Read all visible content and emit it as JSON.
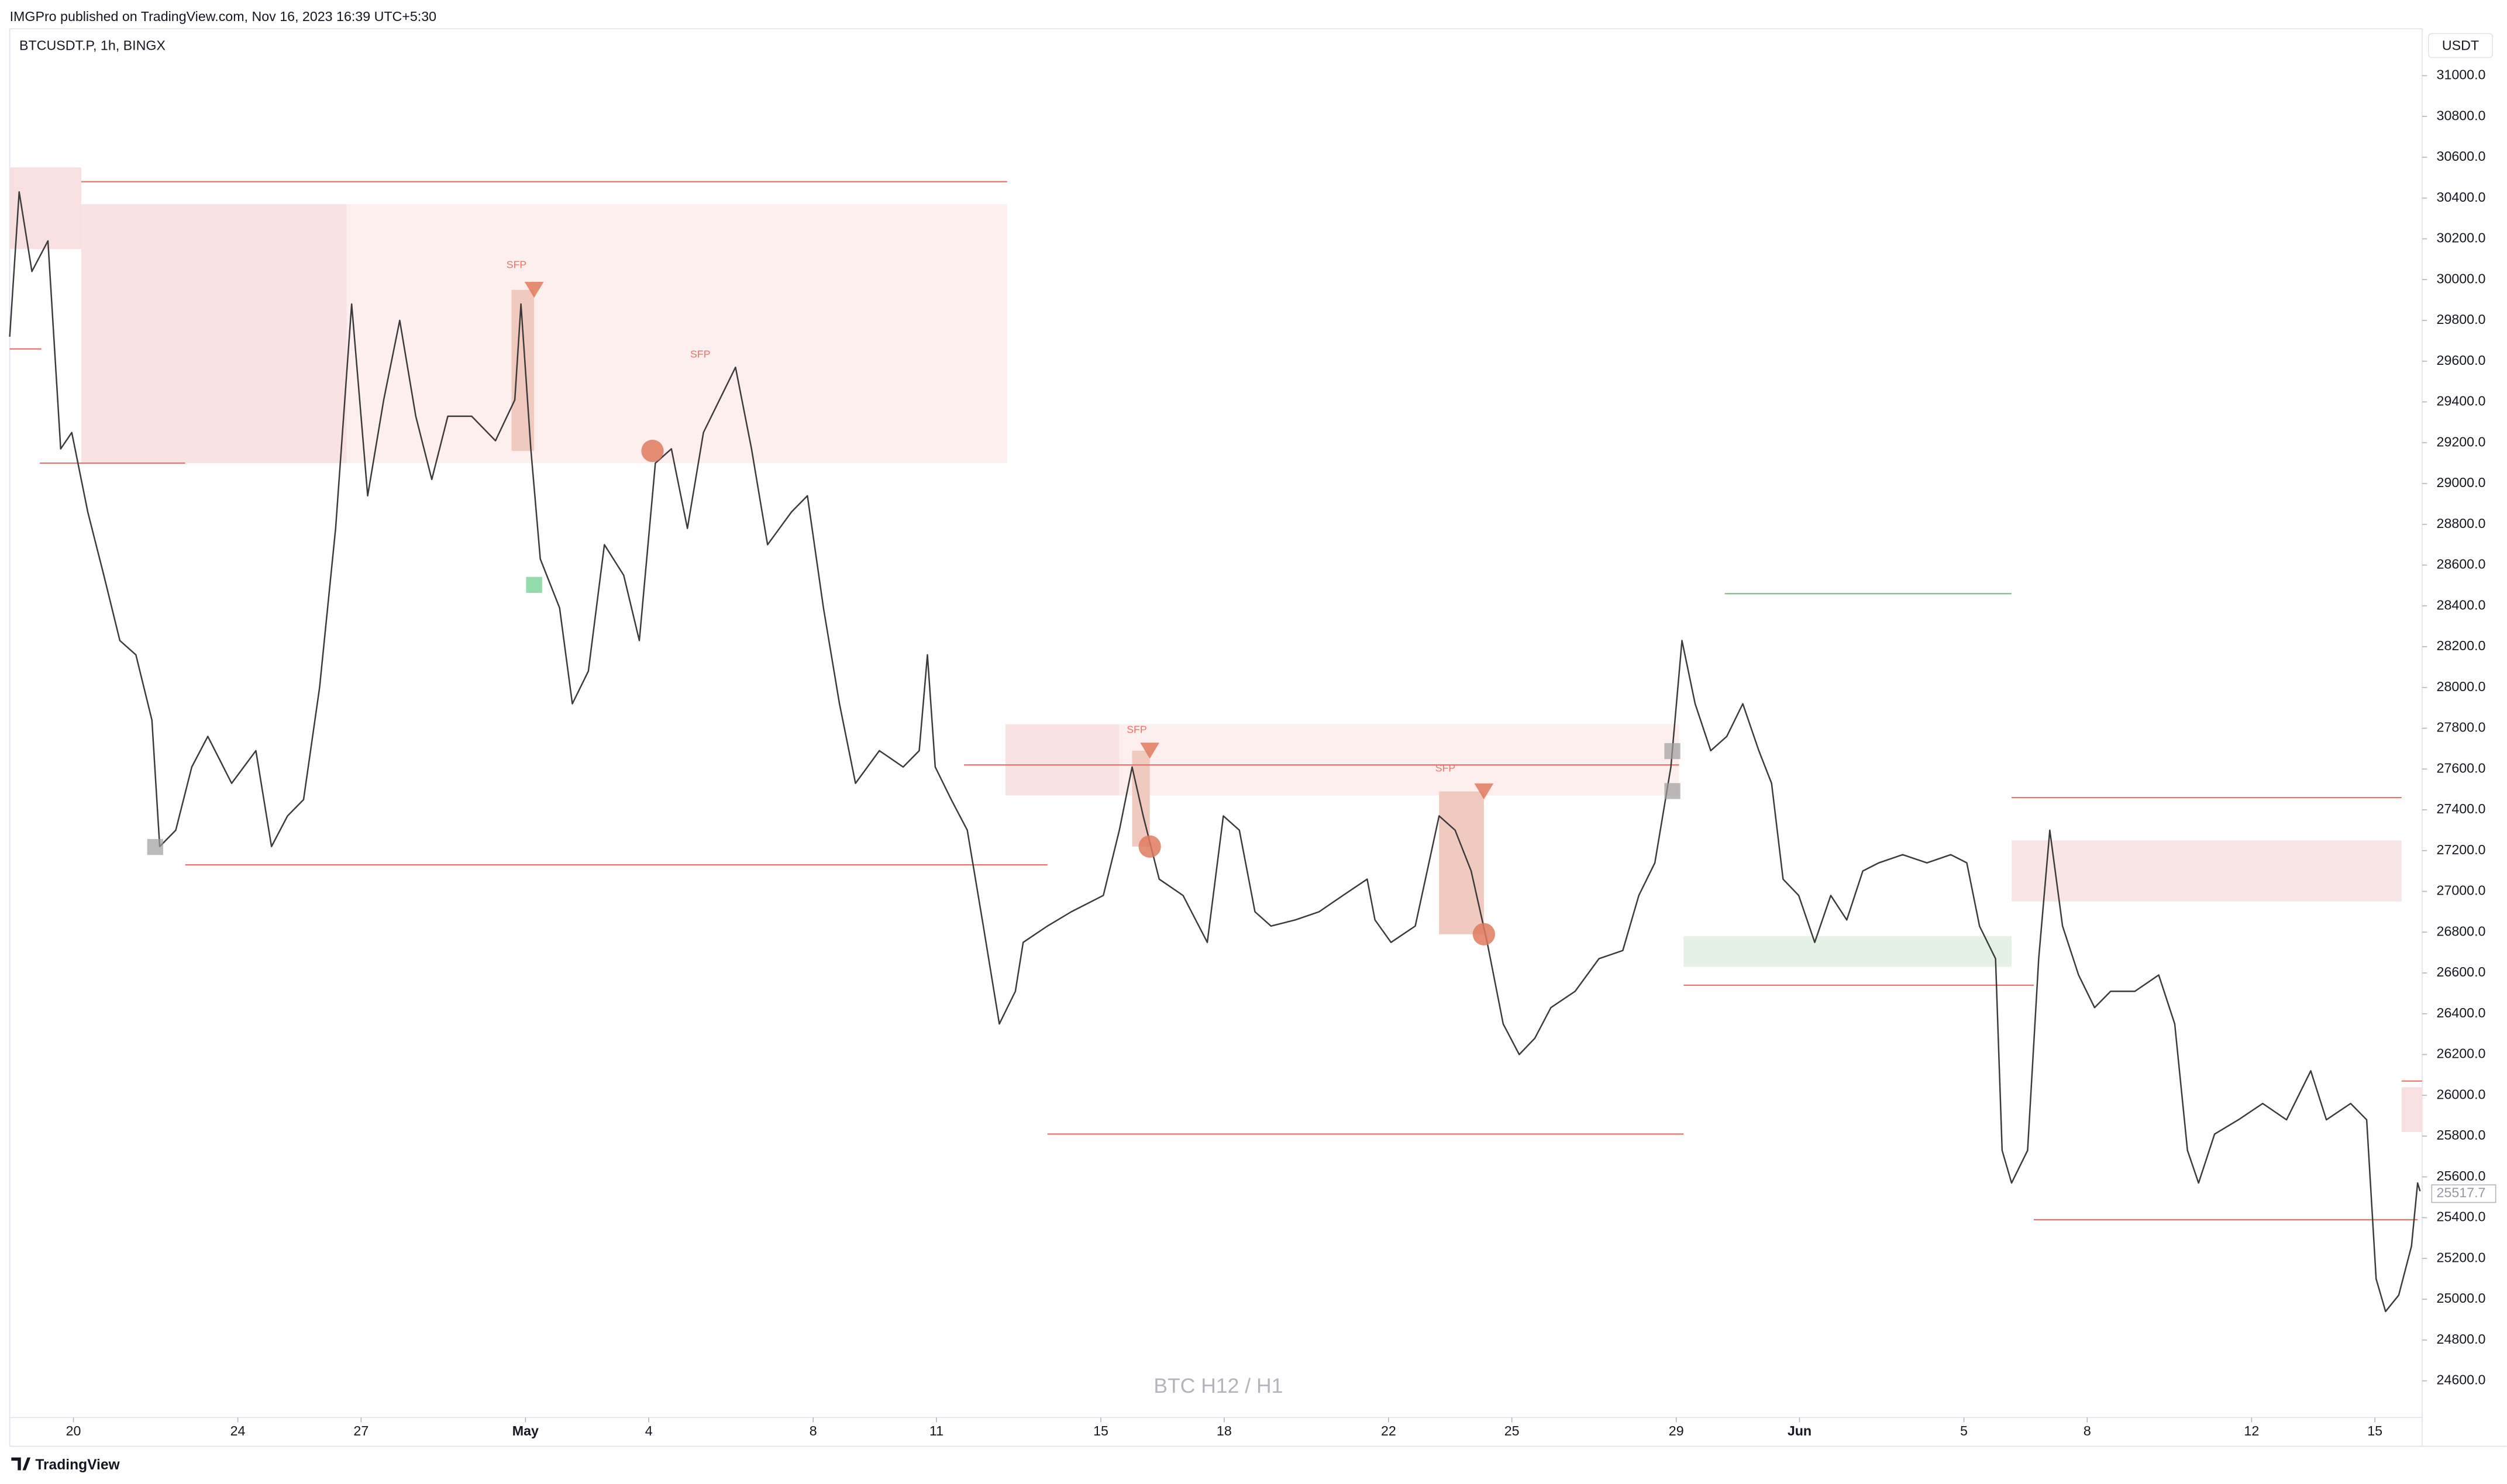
{
  "header": {
    "publisher": "IMGPro published on TradingView.com, Nov 16, 2023 16:39 UTC+5:30"
  },
  "footer": {
    "brand": "TradingView"
  },
  "chart_data": {
    "type": "line",
    "symbol": "BTCUSDT.P, 1h, BINGX",
    "currency": "USDT",
    "watermark": "BTC H12 / H1",
    "grid": false,
    "color": "#3a3a3a",
    "last_price": 25517.7,
    "xlim": [
      -1.55,
      57.15
    ],
    "ylim": [
      24420,
      31230
    ],
    "xticks": [
      {
        "value": 0,
        "label": "20"
      },
      {
        "value": 4,
        "label": "24"
      },
      {
        "value": 7,
        "label": "27"
      },
      {
        "value": 11,
        "label": "May"
      },
      {
        "value": 14,
        "label": "4"
      },
      {
        "value": 18,
        "label": "8"
      },
      {
        "value": 21,
        "label": "11"
      },
      {
        "value": 25,
        "label": "15"
      },
      {
        "value": 28,
        "label": "18"
      },
      {
        "value": 32,
        "label": "22"
      },
      {
        "value": 35,
        "label": "25"
      },
      {
        "value": 39,
        "label": "29"
      },
      {
        "value": 42,
        "label": "Jun"
      },
      {
        "value": 46,
        "label": "5"
      },
      {
        "value": 49,
        "label": "8"
      },
      {
        "value": 53,
        "label": "12"
      },
      {
        "value": 56,
        "label": "15"
      }
    ],
    "yticks": [
      {
        "value": 24600,
        "label": "24600.0"
      },
      {
        "value": 24800,
        "label": "24800.0"
      },
      {
        "value": 25000,
        "label": "25000.0"
      },
      {
        "value": 25200,
        "label": "25200.0"
      },
      {
        "value": 25400,
        "label": "25400.0"
      },
      {
        "value": 25600,
        "label": "25600.0"
      },
      {
        "value": 25800,
        "label": "25800.0"
      },
      {
        "value": 26000,
        "label": "26000.0"
      },
      {
        "value": 26200,
        "label": "26200.0"
      },
      {
        "value": 26400,
        "label": "26400.0"
      },
      {
        "value": 26600,
        "label": "26600.0"
      },
      {
        "value": 26800,
        "label": "26800.0"
      },
      {
        "value": 27000,
        "label": "27000.0"
      },
      {
        "value": 27200,
        "label": "27200.0"
      },
      {
        "value": 27400,
        "label": "27400.0"
      },
      {
        "value": 27600,
        "label": "27600.0"
      },
      {
        "value": 27800,
        "label": "27800.0"
      },
      {
        "value": 28000,
        "label": "28000.0"
      },
      {
        "value": 28200,
        "label": "28200.0"
      },
      {
        "value": 28400,
        "label": "28400.0"
      },
      {
        "value": 28600,
        "label": "28600.0"
      },
      {
        "value": 28800,
        "label": "28800.0"
      },
      {
        "value": 29000,
        "label": "29000.0"
      },
      {
        "value": 29200,
        "label": "29200.0"
      },
      {
        "value": 29400,
        "label": "29400.0"
      },
      {
        "value": 29600,
        "label": "29600.0"
      },
      {
        "value": 29800,
        "label": "29800.0"
      },
      {
        "value": 30000,
        "label": "30000.0"
      },
      {
        "value": 30200,
        "label": "30200.0"
      },
      {
        "value": 30400,
        "label": "30400.0"
      },
      {
        "value": 30600,
        "label": "30600.0"
      },
      {
        "value": 30800,
        "label": "30800.0"
      },
      {
        "value": 31000,
        "label": "31000.0"
      }
    ],
    "x": [
      -1.55,
      -1.32,
      -1.01,
      -0.62,
      -0.31,
      -0.04,
      0.35,
      0.74,
      1.13,
      1.52,
      1.91,
      2.1,
      2.49,
      2.88,
      3.27,
      3.85,
      4.44,
      4.82,
      5.21,
      5.6,
      5.99,
      6.38,
      6.77,
      7.16,
      7.55,
      7.94,
      8.33,
      8.72,
      9.11,
      9.69,
      10.27,
      10.74,
      10.89,
      11.13,
      11.36,
      11.83,
      12.14,
      12.53,
      12.92,
      13.39,
      13.77,
      14.16,
      14.55,
      14.94,
      15.33,
      15.72,
      16.11,
      16.5,
      16.89,
      17.47,
      17.86,
      18.25,
      18.64,
      19.03,
      19.61,
      20.19,
      20.58,
      20.78,
      20.97,
      21.36,
      21.75,
      22.14,
      22.53,
      22.92,
      23.11,
      23.7,
      24.28,
      25.06,
      25.45,
      25.76,
      26.03,
      26.42,
      27.0,
      27.59,
      27.98,
      28.37,
      28.75,
      29.14,
      29.73,
      30.31,
      30.89,
      31.48,
      31.67,
      32.06,
      32.65,
      33.23,
      33.62,
      34.01,
      34.4,
      34.79,
      35.18,
      35.56,
      35.95,
      36.54,
      37.12,
      37.7,
      38.09,
      38.48,
      38.87,
      39.14,
      39.46,
      39.84,
      40.23,
      40.62,
      41.01,
      41.32,
      41.6,
      41.98,
      42.37,
      42.76,
      43.15,
      43.54,
      43.93,
      44.51,
      45.1,
      45.68,
      46.07,
      46.38,
      46.77,
      46.93,
      47.16,
      47.55,
      47.82,
      48.09,
      48.4,
      48.79,
      49.18,
      49.57,
      50.16,
      50.74,
      51.13,
      51.44,
      51.71,
      52.1,
      52.68,
      53.27,
      53.85,
      54.44,
      54.82,
      55.41,
      55.8,
      56.03,
      56.26,
      56.58,
      56.89,
      57.04,
      57.1
    ],
    "values": [
      29720,
      30430,
      30040,
      30190,
      29170,
      29250,
      28860,
      28550,
      28230,
      28160,
      27840,
      27220,
      27300,
      27610,
      27760,
      27530,
      27690,
      27220,
      27370,
      27450,
      28000,
      28780,
      29880,
      28940,
      29410,
      29800,
      29330,
      29020,
      29330,
      29330,
      29210,
      29410,
      29880,
      29170,
      28630,
      28390,
      27920,
      28080,
      28700,
      28550,
      28230,
      29100,
      29170,
      28780,
      29250,
      29410,
      29570,
      29170,
      28700,
      28860,
      28940,
      28390,
      27920,
      27530,
      27690,
      27610,
      27690,
      28160,
      27610,
      27450,
      27300,
      26830,
      26350,
      26510,
      26750,
      26830,
      26900,
      26980,
      27300,
      27610,
      27370,
      27060,
      26980,
      26750,
      27370,
      27300,
      26900,
      26830,
      26860,
      26900,
      26980,
      27060,
      26860,
      26750,
      26830,
      27370,
      27300,
      27100,
      26750,
      26350,
      26200,
      26280,
      26430,
      26510,
      26670,
      26710,
      26980,
      27140,
      27610,
      28230,
      27920,
      27690,
      27760,
      27920,
      27690,
      27530,
      27060,
      26980,
      26750,
      26980,
      26860,
      27100,
      27140,
      27180,
      27140,
      27180,
      27140,
      26830,
      26670,
      25730,
      25570,
      25730,
      26670,
      27300,
      26830,
      26590,
      26430,
      26510,
      26510,
      26590,
      26350,
      25730,
      25570,
      25810,
      25880,
      25960,
      25880,
      26120,
      25880,
      25960,
      25880,
      25100,
      24940,
      25020,
      25260,
      25570,
      25530
    ],
    "zones": [
      {
        "x": [
          -1.55,
          0.19
        ],
        "y": [
          30550,
          30150
        ],
        "color": "#f8e0e0"
      },
      {
        "x": [
          0.19,
          6.65
        ],
        "y": [
          30370,
          29100
        ],
        "color": "#f8e2e2"
      },
      {
        "x": [
          6.65,
          22.72
        ],
        "y": [
          30370,
          29100
        ],
        "color": "#fcefed"
      },
      {
        "x": [
          22.68,
          25.45
        ],
        "y": [
          27820,
          27470
        ],
        "color": "#f8e2e2"
      },
      {
        "x": [
          25.45,
          39.07
        ],
        "y": [
          27820,
          27470
        ],
        "color": "#fcefed"
      },
      {
        "x": [
          47.16,
          56.65
        ],
        "y": [
          27250,
          26950
        ],
        "color": "#f9e5e5"
      },
      {
        "x": [
          56.65,
          57.15
        ],
        "y": [
          26040,
          25820
        ],
        "color": "#f9e0e0"
      },
      {
        "x": [
          39.18,
          47.16
        ],
        "y": [
          26780,
          26630
        ],
        "color": "#e3f2e5"
      },
      {
        "x": [
          10.66,
          11.21
        ],
        "y": [
          29950,
          29160
        ],
        "color": "#f0c9bf"
      },
      {
        "x": [
          25.76,
          26.19
        ],
        "y": [
          27690,
          27220
        ],
        "color": "#f0c9bf"
      },
      {
        "x": [
          33.23,
          34.32
        ],
        "y": [
          27490,
          26790
        ],
        "color": "#f0c9bf"
      }
    ],
    "levels": [
      {
        "x": [
          0.19,
          22.72
        ],
        "y": 30480,
        "color": "#e8736b"
      },
      {
        "x": [
          -1.55,
          -0.78
        ],
        "y": 29660,
        "color": "#e8736b"
      },
      {
        "x": [
          -0.82,
          2.72
        ],
        "y": 29100,
        "color": "#e8736b"
      },
      {
        "x": [
          2.72,
          23.7
        ],
        "y": 27130,
        "color": "#e8736b"
      },
      {
        "x": [
          21.67,
          39.07
        ],
        "y": 27620,
        "color": "#e8736b"
      },
      {
        "x": [
          23.7,
          39.18
        ],
        "y": 25810,
        "color": "#e8736b"
      },
      {
        "x": [
          47.16,
          56.65
        ],
        "y": 27460,
        "color": "#e8736b"
      },
      {
        "x": [
          39.18,
          47.7
        ],
        "y": 26540,
        "color": "#e8736b"
      },
      {
        "x": [
          47.7,
          57.04
        ],
        "y": 25390,
        "color": "#e8736b"
      },
      {
        "x": [
          56.65,
          57.15
        ],
        "y": 26070,
        "color": "#e8736b"
      },
      {
        "x": [
          40.18,
          47.16
        ],
        "y": 28460,
        "color": "#7fb883"
      }
    ],
    "markers": [
      {
        "x": 14.09,
        "y": 29160,
        "shape": "circle",
        "color": "#e07a5f"
      },
      {
        "x": 26.19,
        "y": 27220,
        "shape": "circle",
        "color": "#e07a5f"
      },
      {
        "x": 34.32,
        "y": 26790,
        "shape": "circle",
        "color": "#e07a5f"
      },
      {
        "x": 11.21,
        "y": 29950,
        "shape": "triangle",
        "color": "#e07a5f"
      },
      {
        "x": 26.19,
        "y": 27690,
        "shape": "triangle",
        "color": "#e07a5f"
      },
      {
        "x": 34.32,
        "y": 27490,
        "shape": "triangle",
        "color": "#e07a5f"
      }
    ],
    "annotations": [
      "SFP",
      "SFP",
      "SFP",
      "SFP"
    ]
  }
}
